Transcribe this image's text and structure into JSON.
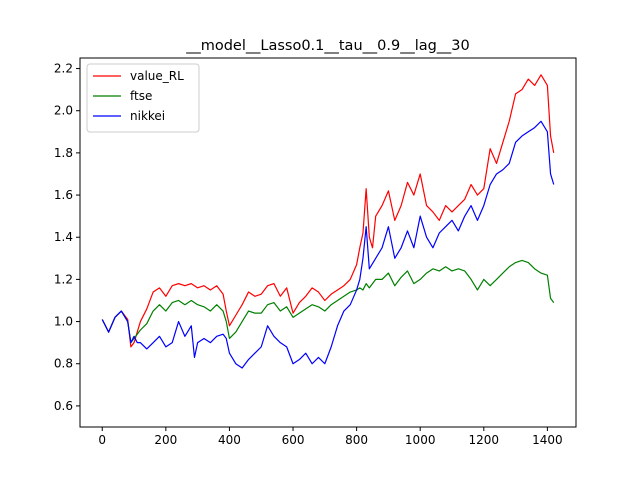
{
  "chart_data": {
    "type": "line",
    "title": "__model__Lasso0.1__tau__0.9__lag__30",
    "xlabel": "",
    "ylabel": "",
    "xlim": [
      -70,
      1490
    ],
    "ylim": [
      0.5,
      2.25
    ],
    "xticks": [
      0,
      200,
      400,
      600,
      800,
      1000,
      1200,
      1400
    ],
    "xtick_labels": [
      "0",
      "200",
      "400",
      "600",
      "800",
      "1000",
      "1200",
      "1400"
    ],
    "yticks": [
      0.6,
      0.8,
      1.0,
      1.2,
      1.4,
      1.6,
      1.8,
      2.0,
      2.2
    ],
    "ytick_labels": [
      "0.6",
      "0.8",
      "1.0",
      "1.2",
      "1.4",
      "1.6",
      "1.8",
      "2.0",
      "2.2"
    ],
    "grid": false,
    "legend_position": "top-left",
    "series": [
      {
        "name": "value_RL",
        "color": "#ff0000",
        "x": [
          0,
          20,
          40,
          60,
          80,
          90,
          100,
          110,
          120,
          140,
          160,
          180,
          200,
          220,
          240,
          260,
          280,
          300,
          320,
          340,
          360,
          380,
          390,
          400,
          420,
          440,
          460,
          480,
          500,
          520,
          540,
          560,
          580,
          600,
          620,
          640,
          660,
          680,
          700,
          720,
          740,
          760,
          780,
          800,
          810,
          820,
          830,
          840,
          850,
          860,
          880,
          900,
          920,
          940,
          960,
          980,
          1000,
          1020,
          1040,
          1060,
          1080,
          1100,
          1120,
          1140,
          1160,
          1180,
          1200,
          1220,
          1240,
          1260,
          1280,
          1300,
          1320,
          1340,
          1360,
          1380,
          1400,
          1410,
          1420
        ],
        "values": [
          1.01,
          0.95,
          1.02,
          1.05,
          1.01,
          0.88,
          0.9,
          0.95,
          1.0,
          1.06,
          1.14,
          1.16,
          1.12,
          1.17,
          1.18,
          1.17,
          1.18,
          1.16,
          1.17,
          1.15,
          1.17,
          1.13,
          1.05,
          0.98,
          1.03,
          1.08,
          1.14,
          1.12,
          1.13,
          1.17,
          1.18,
          1.12,
          1.16,
          1.04,
          1.09,
          1.12,
          1.16,
          1.14,
          1.1,
          1.13,
          1.15,
          1.17,
          1.2,
          1.27,
          1.35,
          1.42,
          1.63,
          1.4,
          1.35,
          1.5,
          1.55,
          1.62,
          1.48,
          1.55,
          1.66,
          1.6,
          1.7,
          1.55,
          1.52,
          1.48,
          1.55,
          1.52,
          1.55,
          1.58,
          1.65,
          1.6,
          1.63,
          1.82,
          1.75,
          1.85,
          1.95,
          2.08,
          2.1,
          2.15,
          2.12,
          2.17,
          2.12,
          1.88,
          1.8
        ]
      },
      {
        "name": "ftse",
        "color": "#008000",
        "x": [
          0,
          20,
          40,
          60,
          80,
          90,
          100,
          110,
          120,
          140,
          160,
          180,
          200,
          220,
          240,
          260,
          280,
          300,
          320,
          340,
          360,
          380,
          390,
          400,
          420,
          440,
          460,
          480,
          500,
          520,
          540,
          560,
          580,
          600,
          620,
          640,
          660,
          680,
          700,
          720,
          740,
          760,
          780,
          800,
          810,
          820,
          830,
          840,
          860,
          880,
          900,
          920,
          940,
          960,
          980,
          1000,
          1020,
          1040,
          1060,
          1080,
          1100,
          1120,
          1140,
          1160,
          1180,
          1200,
          1220,
          1240,
          1260,
          1280,
          1300,
          1320,
          1340,
          1360,
          1380,
          1400,
          1410,
          1420
        ],
        "values": [
          1.01,
          0.95,
          1.02,
          1.05,
          1.0,
          0.9,
          0.92,
          0.94,
          0.96,
          0.99,
          1.05,
          1.08,
          1.05,
          1.09,
          1.1,
          1.08,
          1.1,
          1.08,
          1.07,
          1.05,
          1.08,
          1.05,
          1.0,
          0.92,
          0.95,
          1.0,
          1.05,
          1.04,
          1.04,
          1.08,
          1.09,
          1.05,
          1.07,
          1.02,
          1.04,
          1.06,
          1.08,
          1.07,
          1.05,
          1.08,
          1.1,
          1.12,
          1.14,
          1.15,
          1.16,
          1.15,
          1.18,
          1.16,
          1.2,
          1.2,
          1.23,
          1.17,
          1.21,
          1.24,
          1.18,
          1.2,
          1.23,
          1.25,
          1.24,
          1.26,
          1.24,
          1.25,
          1.24,
          1.2,
          1.15,
          1.2,
          1.17,
          1.2,
          1.23,
          1.26,
          1.28,
          1.29,
          1.28,
          1.25,
          1.23,
          1.22,
          1.11,
          1.09
        ]
      },
      {
        "name": "nikkei",
        "color": "#0000ff",
        "x": [
          0,
          20,
          40,
          60,
          80,
          90,
          100,
          110,
          120,
          140,
          160,
          180,
          200,
          220,
          240,
          260,
          280,
          290,
          300,
          320,
          340,
          360,
          380,
          390,
          400,
          420,
          440,
          460,
          480,
          500,
          520,
          540,
          560,
          580,
          600,
          620,
          640,
          660,
          680,
          700,
          720,
          740,
          760,
          780,
          800,
          810,
          820,
          830,
          840,
          860,
          880,
          900,
          920,
          940,
          960,
          980,
          1000,
          1020,
          1040,
          1060,
          1080,
          1100,
          1120,
          1140,
          1160,
          1180,
          1200,
          1220,
          1240,
          1260,
          1280,
          1300,
          1320,
          1340,
          1360,
          1380,
          1400,
          1410,
          1420
        ],
        "values": [
          1.01,
          0.95,
          1.02,
          1.05,
          1.0,
          0.9,
          0.93,
          0.9,
          0.9,
          0.87,
          0.9,
          0.93,
          0.88,
          0.9,
          1.0,
          0.93,
          0.98,
          0.83,
          0.9,
          0.92,
          0.9,
          0.93,
          0.94,
          0.92,
          0.85,
          0.8,
          0.78,
          0.82,
          0.85,
          0.88,
          0.98,
          0.93,
          0.9,
          0.88,
          0.8,
          0.82,
          0.85,
          0.8,
          0.83,
          0.8,
          0.88,
          0.98,
          1.05,
          1.08,
          1.15,
          1.2,
          1.3,
          1.45,
          1.25,
          1.3,
          1.35,
          1.45,
          1.3,
          1.35,
          1.43,
          1.35,
          1.5,
          1.4,
          1.35,
          1.42,
          1.45,
          1.48,
          1.43,
          1.5,
          1.55,
          1.48,
          1.55,
          1.65,
          1.7,
          1.72,
          1.75,
          1.85,
          1.88,
          1.9,
          1.92,
          1.95,
          1.9,
          1.7,
          1.65
        ]
      }
    ]
  }
}
